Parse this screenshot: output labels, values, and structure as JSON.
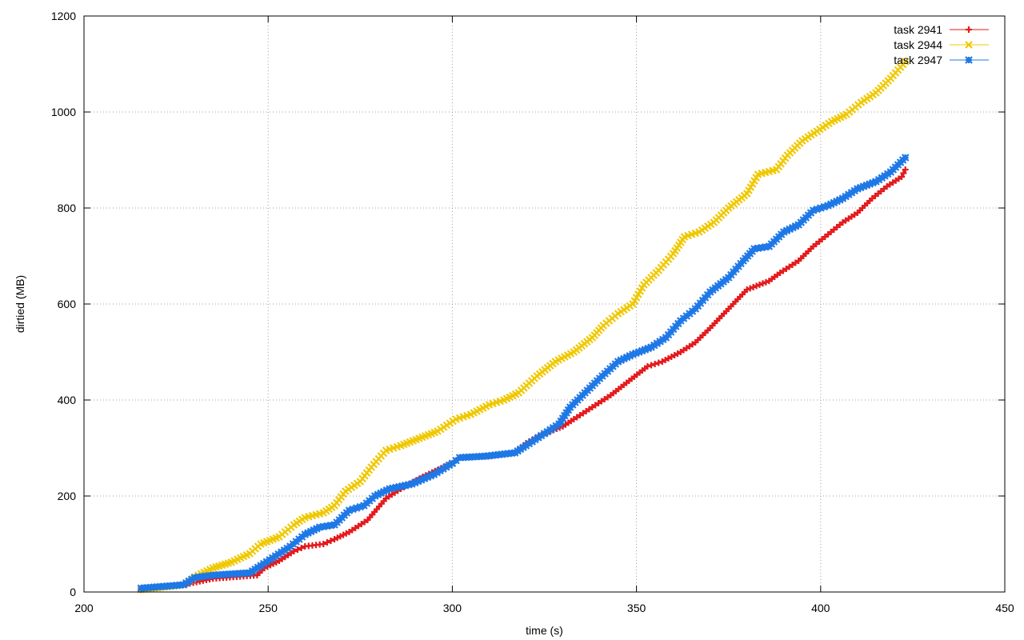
{
  "chart_data": {
    "type": "line",
    "xlabel": "time (s)",
    "ylabel": "dirtied (MB)",
    "xlim": [
      200,
      450
    ],
    "ylim": [
      0,
      1200
    ],
    "xticks": [
      200,
      250,
      300,
      350,
      400,
      450
    ],
    "yticks": [
      0,
      200,
      400,
      600,
      800,
      1000,
      1200
    ],
    "grid": true,
    "legend_position": "top-right",
    "series": [
      {
        "name": "task 2941",
        "color": "#e41a1c",
        "marker": "plus",
        "points": [
          [
            215.5,
            5
          ],
          [
            227,
            15
          ],
          [
            235,
            28
          ],
          [
            247,
            35
          ],
          [
            249,
            50
          ],
          [
            253,
            65
          ],
          [
            257,
            85
          ],
          [
            260,
            95
          ],
          [
            265,
            100
          ],
          [
            268,
            110
          ],
          [
            272,
            125
          ],
          [
            277,
            150
          ],
          [
            282,
            195
          ],
          [
            286,
            215
          ],
          [
            292,
            240
          ],
          [
            297,
            258
          ],
          [
            300,
            268
          ],
          [
            302,
            280
          ],
          [
            310,
            283
          ],
          [
            317,
            290
          ],
          [
            320,
            310
          ],
          [
            325,
            330
          ],
          [
            330,
            345
          ],
          [
            333,
            360
          ],
          [
            338,
            385
          ],
          [
            343,
            410
          ],
          [
            348,
            440
          ],
          [
            353,
            470
          ],
          [
            357,
            480
          ],
          [
            362,
            500
          ],
          [
            366,
            520
          ],
          [
            370,
            550
          ],
          [
            375,
            590
          ],
          [
            380,
            630
          ],
          [
            386,
            648
          ],
          [
            389,
            665
          ],
          [
            394,
            690
          ],
          [
            398,
            720
          ],
          [
            402,
            745
          ],
          [
            406,
            770
          ],
          [
            410,
            790
          ],
          [
            414,
            820
          ],
          [
            418,
            845
          ],
          [
            422,
            865
          ],
          [
            423,
            880
          ]
        ]
      },
      {
        "name": "task 2944",
        "color": "#f0c800",
        "marker": "cross",
        "points": [
          [
            215.5,
            5
          ],
          [
            227,
            15
          ],
          [
            231,
            35
          ],
          [
            235,
            50
          ],
          [
            240,
            62
          ],
          [
            245,
            80
          ],
          [
            248,
            100
          ],
          [
            253,
            115
          ],
          [
            257,
            140
          ],
          [
            260,
            155
          ],
          [
            265,
            165
          ],
          [
            268,
            180
          ],
          [
            271,
            210
          ],
          [
            275,
            230
          ],
          [
            278,
            260
          ],
          [
            282,
            295
          ],
          [
            286,
            305
          ],
          [
            291,
            320
          ],
          [
            296,
            335
          ],
          [
            301,
            360
          ],
          [
            305,
            370
          ],
          [
            310,
            390
          ],
          [
            314,
            400
          ],
          [
            318,
            415
          ],
          [
            323,
            450
          ],
          [
            328,
            480
          ],
          [
            333,
            500
          ],
          [
            338,
            530
          ],
          [
            341,
            555
          ],
          [
            345,
            580
          ],
          [
            349,
            600
          ],
          [
            352,
            640
          ],
          [
            356,
            670
          ],
          [
            360,
            705
          ],
          [
            363,
            740
          ],
          [
            367,
            750
          ],
          [
            371,
            770
          ],
          [
            375,
            800
          ],
          [
            380,
            830
          ],
          [
            383,
            870
          ],
          [
            388,
            880
          ],
          [
            391,
            910
          ],
          [
            395,
            940
          ],
          [
            399,
            960
          ],
          [
            403,
            980
          ],
          [
            407,
            995
          ],
          [
            411,
            1020
          ],
          [
            415,
            1040
          ],
          [
            419,
            1070
          ],
          [
            423,
            1105
          ]
        ]
      },
      {
        "name": "task 2947",
        "color": "#1e78e6",
        "marker": "star",
        "points": [
          [
            215.5,
            8
          ],
          [
            227,
            15
          ],
          [
            230,
            30
          ],
          [
            235,
            35
          ],
          [
            245,
            40
          ],
          [
            248,
            55
          ],
          [
            252,
            75
          ],
          [
            256,
            95
          ],
          [
            260,
            120
          ],
          [
            264,
            135
          ],
          [
            268,
            140
          ],
          [
            272,
            170
          ],
          [
            276,
            180
          ],
          [
            279,
            200
          ],
          [
            283,
            215
          ],
          [
            289,
            225
          ],
          [
            295,
            245
          ],
          [
            300,
            268
          ],
          [
            302,
            280
          ],
          [
            309,
            283
          ],
          [
            317,
            290
          ],
          [
            320,
            305
          ],
          [
            325,
            330
          ],
          [
            329,
            350
          ],
          [
            332,
            385
          ],
          [
            336,
            415
          ],
          [
            340,
            445
          ],
          [
            345,
            480
          ],
          [
            349,
            495
          ],
          [
            354,
            510
          ],
          [
            358,
            530
          ],
          [
            362,
            565
          ],
          [
            366,
            590
          ],
          [
            370,
            625
          ],
          [
            375,
            655
          ],
          [
            379,
            690
          ],
          [
            382,
            715
          ],
          [
            386,
            720
          ],
          [
            390,
            750
          ],
          [
            394,
            765
          ],
          [
            398,
            795
          ],
          [
            402,
            805
          ],
          [
            406,
            820
          ],
          [
            410,
            840
          ],
          [
            415,
            855
          ],
          [
            419,
            875
          ],
          [
            423,
            905
          ]
        ]
      }
    ]
  }
}
